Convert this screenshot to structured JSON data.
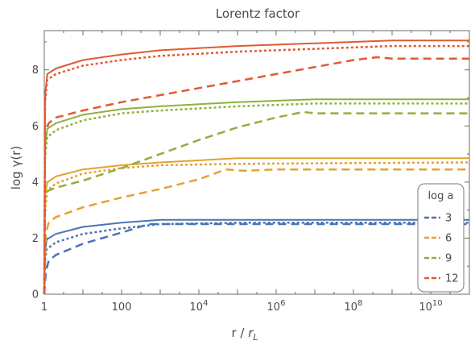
{
  "chart_data": {
    "type": "line",
    "title": "Lorentz factor",
    "xlabel": "r / r_L",
    "ylabel": "log γ(r)",
    "xscale": "log10",
    "xlim": [
      1,
      100000000000.0
    ],
    "ylim": [
      0,
      9.4
    ],
    "x_ticks": [
      {
        "value": 1,
        "label": "1"
      },
      {
        "value": 100,
        "label": "100"
      },
      {
        "value": 10000,
        "label": "10^4"
      },
      {
        "value": 1000000,
        "label": "10^6"
      },
      {
        "value": 100000000,
        "label": "10^8"
      },
      {
        "value": 10000000000,
        "label": "10^10"
      }
    ],
    "y_ticks": [
      0,
      2,
      4,
      6,
      8
    ],
    "grid": false,
    "legend": {
      "title": "log a",
      "position": "right",
      "entries": [
        "3",
        "6",
        "9",
        "12"
      ]
    },
    "groups": [
      {
        "legend_label": "3",
        "color": "#4a75b0",
        "solid": [
          [
            1,
            0
          ],
          [
            1.05,
            1.5
          ],
          [
            1.15,
            1.95
          ],
          [
            2,
            2.15
          ],
          [
            10,
            2.4
          ],
          [
            100,
            2.55
          ],
          [
            1000,
            2.65
          ],
          [
            100000.0,
            2.65
          ],
          [
            100000000000.0,
            2.65
          ]
        ],
        "dotted": [
          [
            1,
            0
          ],
          [
            1.05,
            1.2
          ],
          [
            1.15,
            1.6
          ],
          [
            2,
            1.85
          ],
          [
            10,
            2.15
          ],
          [
            100,
            2.35
          ],
          [
            1000,
            2.5
          ],
          [
            100000.0,
            2.55
          ],
          [
            100000000000.0,
            2.55
          ]
        ],
        "dashed": [
          [
            1,
            0
          ],
          [
            1.1,
            0.8
          ],
          [
            1.3,
            1.2
          ],
          [
            2,
            1.4
          ],
          [
            10,
            1.8
          ],
          [
            100,
            2.2
          ],
          [
            500,
            2.5
          ],
          [
            1000,
            2.5
          ],
          [
            100000.0,
            2.5
          ],
          [
            100000000000.0,
            2.5
          ]
        ]
      },
      {
        "legend_label": "6",
        "color": "#e3a231",
        "solid": [
          [
            1,
            0
          ],
          [
            1.05,
            3.5
          ],
          [
            1.2,
            4.0
          ],
          [
            2,
            4.2
          ],
          [
            10,
            4.45
          ],
          [
            100,
            4.6
          ],
          [
            1000,
            4.7
          ],
          [
            100000.0,
            4.85
          ],
          [
            1000000.0,
            4.85
          ],
          [
            100000000000.0,
            4.85
          ]
        ],
        "dotted": [
          [
            1,
            0
          ],
          [
            1.05,
            3.0
          ],
          [
            1.2,
            3.7
          ],
          [
            2,
            3.95
          ],
          [
            10,
            4.3
          ],
          [
            100,
            4.5
          ],
          [
            1000,
            4.6
          ],
          [
            100000.0,
            4.65
          ],
          [
            100000000000.0,
            4.7
          ]
        ],
        "dashed": [
          [
            1,
            0
          ],
          [
            1.1,
            2.2
          ],
          [
            1.3,
            2.55
          ],
          [
            2,
            2.75
          ],
          [
            10,
            3.1
          ],
          [
            100,
            3.45
          ],
          [
            1000,
            3.75
          ],
          [
            10000.0,
            4.1
          ],
          [
            50000.0,
            4.45
          ],
          [
            150000.0,
            4.4
          ],
          [
            1000000.0,
            4.45
          ],
          [
            100000000000.0,
            4.45
          ]
        ]
      },
      {
        "legend_label": "9",
        "color": "#8fb03e",
        "solid": [
          [
            1,
            0
          ],
          [
            1.05,
            5.3
          ],
          [
            1.2,
            5.9
          ],
          [
            2,
            6.1
          ],
          [
            10,
            6.4
          ],
          [
            100,
            6.6
          ],
          [
            1000,
            6.7
          ],
          [
            100000.0,
            6.85
          ],
          [
            10000000.0,
            6.95
          ],
          [
            100000000000.0,
            6.95
          ]
        ],
        "dotted": [
          [
            1,
            0
          ],
          [
            1.05,
            5.0
          ],
          [
            1.2,
            5.6
          ],
          [
            2,
            5.85
          ],
          [
            10,
            6.2
          ],
          [
            100,
            6.45
          ],
          [
            1000,
            6.55
          ],
          [
            100000.0,
            6.7
          ],
          [
            10000000.0,
            6.8
          ],
          [
            100000000000.0,
            6.8
          ]
        ],
        "dashed": [
          [
            1,
            0
          ],
          [
            1.05,
            3.6
          ],
          [
            1.3,
            3.7
          ],
          [
            2,
            3.8
          ],
          [
            10,
            4.05
          ],
          [
            100,
            4.5
          ],
          [
            1000,
            5.0
          ],
          [
            10000.0,
            5.5
          ],
          [
            100000.0,
            5.95
          ],
          [
            1000000.0,
            6.3
          ],
          [
            5000000.0,
            6.5
          ],
          [
            10000000.0,
            6.45
          ],
          [
            100000000000.0,
            6.45
          ]
        ]
      },
      {
        "legend_label": "12",
        "color": "#e05a33",
        "solid": [
          [
            1,
            0
          ],
          [
            1.05,
            7.1
          ],
          [
            1.2,
            7.85
          ],
          [
            2,
            8.05
          ],
          [
            10,
            8.35
          ],
          [
            100,
            8.55
          ],
          [
            1000,
            8.7
          ],
          [
            100000.0,
            8.85
          ],
          [
            10000000.0,
            8.95
          ],
          [
            1000000000.0,
            9.05
          ],
          [
            100000000000.0,
            9.05
          ]
        ],
        "dotted": [
          [
            1,
            0
          ],
          [
            1.05,
            6.9
          ],
          [
            1.2,
            7.65
          ],
          [
            2,
            7.85
          ],
          [
            10,
            8.15
          ],
          [
            100,
            8.35
          ],
          [
            1000,
            8.5
          ],
          [
            100000.0,
            8.65
          ],
          [
            10000000.0,
            8.75
          ],
          [
            1000000000.0,
            8.85
          ],
          [
            100000000000.0,
            8.85
          ]
        ],
        "dashed": [
          [
            1,
            0
          ],
          [
            1.05,
            5.8
          ],
          [
            1.3,
            6.1
          ],
          [
            2,
            6.3
          ],
          [
            10,
            6.55
          ],
          [
            100,
            6.85
          ],
          [
            1000,
            7.1
          ],
          [
            10000.0,
            7.35
          ],
          [
            100000.0,
            7.6
          ],
          [
            1000000.0,
            7.85
          ],
          [
            10000000.0,
            8.1
          ],
          [
            100000000.0,
            8.35
          ],
          [
            400000000.0,
            8.45
          ],
          [
            1000000000.0,
            8.4
          ],
          [
            100000000000.0,
            8.4
          ]
        ]
      }
    ]
  }
}
